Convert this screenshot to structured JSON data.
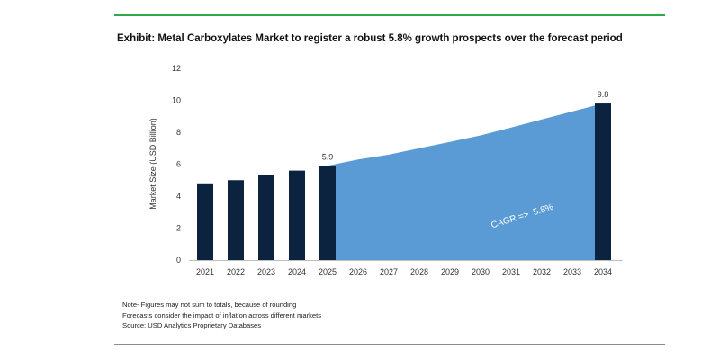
{
  "exhibit": {
    "title": "Exhibit: Metal Carboxylates Market to register a robust 5.8% growth prospects over the forecast period"
  },
  "notes": [
    "Note- Figures may not sum to totals, because of rounding",
    "Forecasts consider the impact of inflation across different markets",
    "Source: USD Analytics Proprietary Databases"
  ],
  "colors": {
    "bar": "#0c2340",
    "area": "#5b9bd5",
    "top_rule": "#2eaa4a",
    "axis_text": "#333333"
  },
  "chart_data": {
    "type": "bar",
    "ylabel": "Market Size (USD Billion)",
    "ylim": [
      0,
      12
    ],
    "yticks": [
      0,
      2,
      4,
      6,
      8,
      10,
      12
    ],
    "grid": false,
    "categories": [
      "2021",
      "2022",
      "2023",
      "2024",
      "2025",
      "2026",
      "2027",
      "2028",
      "2029",
      "2030",
      "2031",
      "2032",
      "2033",
      "2034"
    ],
    "bars": [
      {
        "x": "2021",
        "value": 4.8
      },
      {
        "x": "2022",
        "value": 5.0
      },
      {
        "x": "2023",
        "value": 5.3
      },
      {
        "x": "2024",
        "value": 5.6
      },
      {
        "x": "2025",
        "value": 5.9,
        "label": "5.9"
      },
      {
        "x": "2034",
        "value": 9.8,
        "label": "9.8"
      }
    ],
    "area": {
      "x": [
        "2025",
        "2026",
        "2027",
        "2028",
        "2029",
        "2030",
        "2031",
        "2032",
        "2033",
        "2034"
      ],
      "values": [
        5.9,
        6.3,
        6.6,
        7.0,
        7.4,
        7.8,
        8.3,
        8.8,
        9.3,
        9.8
      ]
    },
    "annotation": "CAGR =>  5.8%"
  }
}
